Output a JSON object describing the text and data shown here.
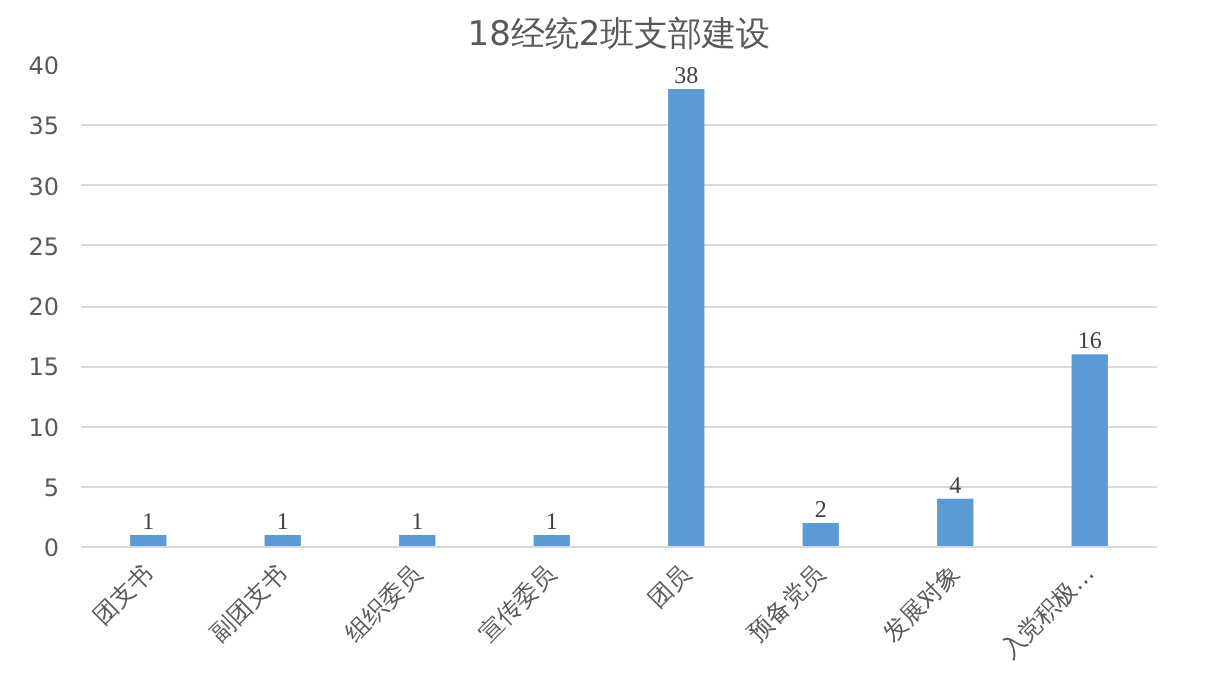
{
  "chart_data": {
    "type": "bar",
    "title": "18经统2班支部建设",
    "categories": [
      "团支书",
      "副团支书",
      "组织委员",
      "宣传委员",
      "团员",
      "预备党员",
      "发展对象",
      "入党积极…"
    ],
    "values": [
      1,
      1,
      1,
      1,
      38,
      2,
      4,
      16
    ],
    "color": "#5b9bd5",
    "ylim": [
      0,
      40
    ],
    "yticks": [
      0,
      5,
      10,
      15,
      20,
      25,
      30,
      35,
      40
    ],
    "grid": "y",
    "data_labels": true
  }
}
